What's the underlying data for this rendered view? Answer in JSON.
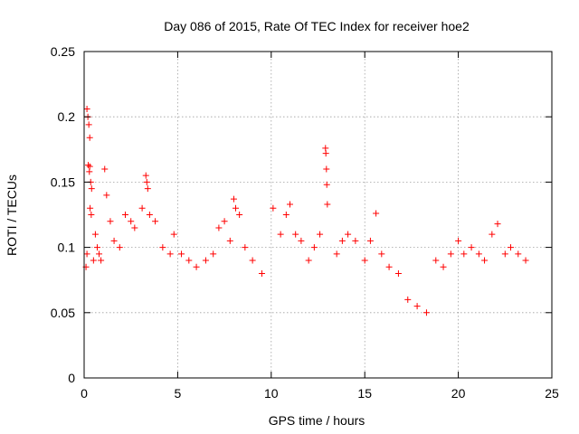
{
  "chart_data": {
    "type": "scatter",
    "title": "Day 086 of 2015, Rate Of TEC Index for receiver hoe2",
    "xlabel": "GPS time / hours",
    "ylabel": "ROTI / TECUs",
    "xlim": [
      0,
      25
    ],
    "ylim": [
      0,
      0.25
    ],
    "x_ticks": [
      0,
      5,
      10,
      15,
      20,
      25
    ],
    "x_tick_labels": [
      "0",
      "5",
      "10",
      "15",
      "20",
      "25"
    ],
    "y_ticks": [
      0,
      0.05,
      0.1,
      0.15,
      0.2,
      0.25
    ],
    "y_tick_labels": [
      "0",
      "0.05",
      "0.1",
      "0.15",
      "0.2",
      "0.25"
    ],
    "grid": true,
    "marker": "plus",
    "marker_color": "#ff0000",
    "series": [
      {
        "points": [
          [
            0.15,
            0.206
          ],
          [
            0.2,
            0.2
          ],
          [
            0.25,
            0.194
          ],
          [
            0.3,
            0.184
          ],
          [
            0.22,
            0.163
          ],
          [
            0.3,
            0.162
          ],
          [
            0.28,
            0.158
          ],
          [
            0.35,
            0.15
          ],
          [
            0.4,
            0.145
          ],
          [
            0.32,
            0.13
          ],
          [
            0.38,
            0.125
          ],
          [
            0.1,
            0.085
          ],
          [
            0.15,
            0.095
          ],
          [
            0.5,
            0.09
          ],
          [
            0.6,
            0.11
          ],
          [
            0.7,
            0.1
          ],
          [
            0.8,
            0.095
          ],
          [
            0.9,
            0.09
          ],
          [
            1.1,
            0.16
          ],
          [
            1.2,
            0.14
          ],
          [
            1.4,
            0.12
          ],
          [
            1.6,
            0.105
          ],
          [
            1.9,
            0.1
          ],
          [
            2.2,
            0.125
          ],
          [
            2.5,
            0.12
          ],
          [
            2.7,
            0.115
          ],
          [
            3.1,
            0.13
          ],
          [
            3.3,
            0.155
          ],
          [
            3.35,
            0.15
          ],
          [
            3.4,
            0.145
          ],
          [
            3.5,
            0.125
          ],
          [
            3.8,
            0.12
          ],
          [
            4.2,
            0.1
          ],
          [
            4.6,
            0.095
          ],
          [
            4.8,
            0.11
          ],
          [
            5.2,
            0.095
          ],
          [
            5.6,
            0.09
          ],
          [
            6.0,
            0.085
          ],
          [
            6.5,
            0.09
          ],
          [
            6.9,
            0.095
          ],
          [
            7.2,
            0.115
          ],
          [
            7.5,
            0.12
          ],
          [
            7.8,
            0.105
          ],
          [
            8.0,
            0.137
          ],
          [
            8.1,
            0.13
          ],
          [
            8.3,
            0.125
          ],
          [
            8.6,
            0.1
          ],
          [
            9.0,
            0.09
          ],
          [
            9.5,
            0.08
          ],
          [
            10.1,
            0.13
          ],
          [
            10.5,
            0.11
          ],
          [
            10.8,
            0.125
          ],
          [
            11.0,
            0.133
          ],
          [
            11.3,
            0.11
          ],
          [
            11.6,
            0.105
          ],
          [
            12.0,
            0.09
          ],
          [
            12.3,
            0.1
          ],
          [
            12.6,
            0.11
          ],
          [
            12.9,
            0.176
          ],
          [
            12.92,
            0.172
          ],
          [
            12.95,
            0.16
          ],
          [
            12.97,
            0.148
          ],
          [
            13.0,
            0.133
          ],
          [
            13.5,
            0.095
          ],
          [
            13.8,
            0.105
          ],
          [
            14.1,
            0.11
          ],
          [
            14.5,
            0.105
          ],
          [
            15.0,
            0.09
          ],
          [
            15.3,
            0.105
          ],
          [
            15.6,
            0.126
          ],
          [
            15.9,
            0.095
          ],
          [
            16.3,
            0.085
          ],
          [
            16.8,
            0.08
          ],
          [
            17.3,
            0.06
          ],
          [
            17.8,
            0.055
          ],
          [
            18.3,
            0.05
          ],
          [
            18.8,
            0.09
          ],
          [
            19.2,
            0.085
          ],
          [
            19.6,
            0.095
          ],
          [
            20.0,
            0.105
          ],
          [
            20.3,
            0.095
          ],
          [
            20.7,
            0.1
          ],
          [
            21.1,
            0.095
          ],
          [
            21.4,
            0.09
          ],
          [
            21.8,
            0.11
          ],
          [
            22.1,
            0.118
          ],
          [
            22.5,
            0.095
          ],
          [
            22.8,
            0.1
          ],
          [
            23.2,
            0.095
          ],
          [
            23.6,
            0.09
          ]
        ]
      }
    ]
  }
}
